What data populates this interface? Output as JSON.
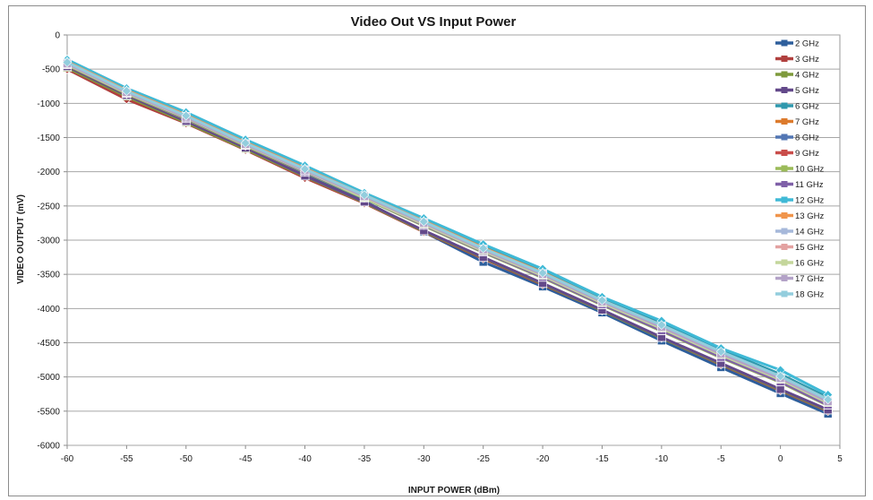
{
  "chart_data": {
    "type": "line",
    "title": "Video Out VS Input Power",
    "xlabel": "INPUT POWER (dBm)",
    "ylabel": "VIDEO OUTPUT (mV)",
    "x": [
      -60,
      -55,
      -50,
      -45,
      -40,
      -35,
      -30,
      -25,
      -20,
      -15,
      -10,
      -5,
      0,
      4
    ],
    "xticks": [
      -60,
      -55,
      -50,
      -45,
      -40,
      -35,
      -30,
      -25,
      -20,
      -15,
      -10,
      -5,
      0,
      5
    ],
    "xlim": [
      -60,
      5
    ],
    "ylim": [
      -6000,
      0
    ],
    "yticks": [
      0,
      -500,
      -1000,
      -1500,
      -2000,
      -2500,
      -3000,
      -3500,
      -4000,
      -4500,
      -5000,
      -5500,
      -6000
    ],
    "grid": "horizontal",
    "legend": "right",
    "series": [
      {
        "name": "2 GHz",
        "color": "#2e5f9c",
        "values": [
          -470,
          -880,
          -1270,
          -1640,
          -2040,
          -2430,
          -2880,
          -3320,
          -3680,
          -4060,
          -4470,
          -4860,
          -5240,
          -5540
        ]
      },
      {
        "name": "3 GHz",
        "color": "#b0403e",
        "values": [
          -500,
          -940,
          -1290,
          -1680,
          -2090,
          -2460,
          -2880,
          -3270,
          -3650,
          -4030,
          -4430,
          -4820,
          -5200,
          -5500
        ]
      },
      {
        "name": "4 GHz",
        "color": "#7e9a3c",
        "values": [
          -480,
          -900,
          -1280,
          -1670,
          -2070,
          -2450,
          -2870,
          -3260,
          -3640,
          -4030,
          -4430,
          -4810,
          -5190,
          -5490
        ]
      },
      {
        "name": "5 GHz",
        "color": "#63498a",
        "values": [
          -460,
          -880,
          -1260,
          -1650,
          -2060,
          -2440,
          -2860,
          -3250,
          -3630,
          -4020,
          -4420,
          -4800,
          -5180,
          -5480
        ]
      },
      {
        "name": "6 GHz",
        "color": "#2f98ad",
        "values": [
          -380,
          -800,
          -1150,
          -1550,
          -1930,
          -2330,
          -2700,
          -3080,
          -3440,
          -3860,
          -4200,
          -4600,
          -4960,
          -5300
        ]
      },
      {
        "name": "7 GHz",
        "color": "#dc7a2c",
        "values": [
          -420,
          -830,
          -1190,
          -1590,
          -1970,
          -2360,
          -2740,
          -3130,
          -3490,
          -3900,
          -4260,
          -4660,
          -5010,
          -5350
        ]
      },
      {
        "name": "8 GHz",
        "color": "#5276b4",
        "values": [
          -400,
          -820,
          -1180,
          -1580,
          -1960,
          -2350,
          -2740,
          -3130,
          -3490,
          -3890,
          -4260,
          -4650,
          -5010,
          -5360
        ]
      },
      {
        "name": "9 GHz",
        "color": "#c94d4a",
        "values": [
          -430,
          -860,
          -1220,
          -1620,
          -2000,
          -2380,
          -2780,
          -3160,
          -3530,
          -3930,
          -4300,
          -4690,
          -5060,
          -5400
        ]
      },
      {
        "name": "10 GHz",
        "color": "#9bbb59",
        "values": [
          -440,
          -860,
          -1230,
          -1620,
          -2010,
          -2390,
          -2790,
          -3180,
          -3550,
          -3950,
          -4330,
          -4720,
          -5080,
          -5420
        ]
      },
      {
        "name": "11 GHz",
        "color": "#7f60a8",
        "values": [
          -430,
          -850,
          -1220,
          -1610,
          -2000,
          -2380,
          -2780,
          -3170,
          -3540,
          -3940,
          -4320,
          -4710,
          -5070,
          -5410
        ]
      },
      {
        "name": "12 GHz",
        "color": "#3fb9d6",
        "values": [
          -360,
          -780,
          -1130,
          -1530,
          -1910,
          -2310,
          -2680,
          -3060,
          -3420,
          -3830,
          -4180,
          -4580,
          -4900,
          -5260
        ]
      },
      {
        "name": "13 GHz",
        "color": "#f0954c",
        "values": [
          -390,
          -810,
          -1170,
          -1570,
          -1950,
          -2340,
          -2720,
          -3110,
          -3470,
          -3880,
          -4240,
          -4640,
          -4990,
          -5330
        ]
      },
      {
        "name": "14 GHz",
        "color": "#a6b8da",
        "values": [
          -410,
          -830,
          -1190,
          -1590,
          -1970,
          -2350,
          -2740,
          -3130,
          -3490,
          -3890,
          -4260,
          -4650,
          -5010,
          -5350
        ]
      },
      {
        "name": "15 GHz",
        "color": "#e3a2a1",
        "values": [
          -420,
          -840,
          -1200,
          -1600,
          -1980,
          -2370,
          -2760,
          -3150,
          -3510,
          -3910,
          -4280,
          -4670,
          -5030,
          -5370
        ]
      },
      {
        "name": "16 GHz",
        "color": "#c4d69b",
        "values": [
          -430,
          -850,
          -1210,
          -1610,
          -1990,
          -2380,
          -2770,
          -3160,
          -3520,
          -3920,
          -4290,
          -4680,
          -5040,
          -5380
        ]
      },
      {
        "name": "17 GHz",
        "color": "#b3a2c7",
        "values": [
          -420,
          -840,
          -1200,
          -1600,
          -1980,
          -2360,
          -2750,
          -3140,
          -3500,
          -3900,
          -4270,
          -4660,
          -5020,
          -5360
        ]
      },
      {
        "name": "18 GHz",
        "color": "#93cddd",
        "values": [
          -400,
          -820,
          -1180,
          -1580,
          -1960,
          -2340,
          -2730,
          -3120,
          -3480,
          -3880,
          -4240,
          -4630,
          -4990,
          -5330
        ]
      }
    ]
  }
}
